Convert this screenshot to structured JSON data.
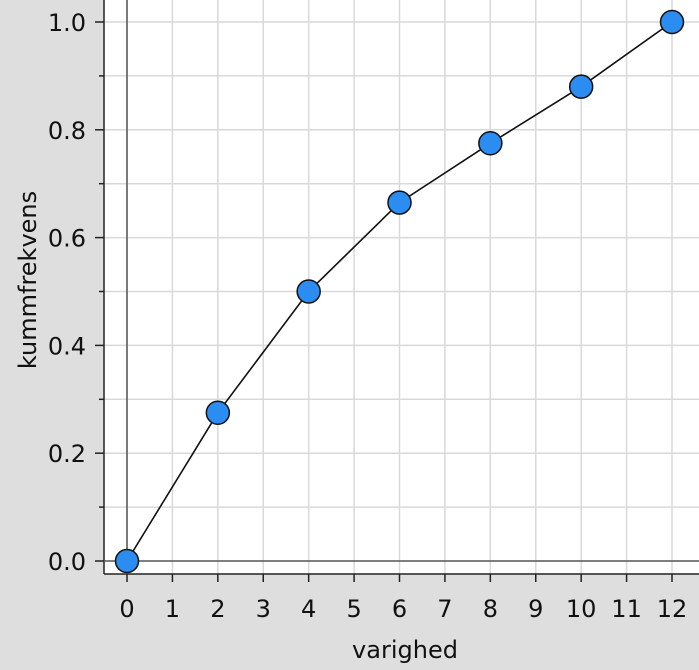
{
  "chart_data": {
    "type": "line",
    "title": "",
    "xlabel": "varighed",
    "ylabel": "kummfrekvens",
    "xlim": [
      -0.5,
      12.5
    ],
    "ylim": [
      -0.025,
      1.03
    ],
    "x_ticks": [
      "0",
      "1",
      "2",
      "3",
      "4",
      "5",
      "6",
      "7",
      "8",
      "9",
      "10",
      "11",
      "12"
    ],
    "y_ticks": [
      "0.0",
      "0.2",
      "0.4",
      "0.6",
      "0.8",
      "1.0"
    ],
    "grid": true,
    "series": [
      {
        "x": [
          0,
          2,
          4,
          6,
          8,
          10,
          12
        ],
        "y": [
          0.0,
          0.275,
          0.5,
          0.665,
          0.775,
          0.88,
          1.0
        ]
      }
    ],
    "colors": {
      "plot_background": "#ffffff",
      "outer_background": "#dedede",
      "grid": "#d9d9d9",
      "line": "#111111",
      "marker_fill": "#2b8cf2",
      "marker_stroke": "#111111"
    }
  }
}
